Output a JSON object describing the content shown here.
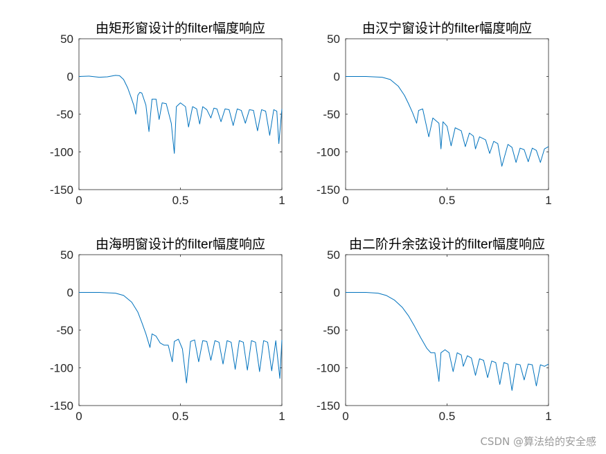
{
  "watermark": "CSDN @算法给的安全感",
  "colors": {
    "line": "#0072BD",
    "axis": "#262626",
    "background": "#ffffff"
  },
  "chart_data": [
    {
      "type": "line",
      "title": "由矩形窗设计的filter幅度响应",
      "xlabel": "",
      "ylabel": "",
      "xlim": [
        0,
        1
      ],
      "ylim": [
        -150,
        50
      ],
      "xticks": [
        "0",
        "0.5",
        "1"
      ],
      "yticks": [
        "50",
        "0",
        "-50",
        "-100",
        "-150"
      ],
      "grid": false,
      "series": [
        {
          "x": [
            0,
            0.05,
            0.1,
            0.14,
            0.18,
            0.2,
            0.22,
            0.24,
            0.26,
            0.27,
            0.28,
            0.29,
            0.3,
            0.31,
            0.33,
            0.345,
            0.36,
            0.38,
            0.395,
            0.41,
            0.43,
            0.455,
            0.47,
            0.48,
            0.5,
            0.525,
            0.54,
            0.56,
            0.58,
            0.595,
            0.61,
            0.63,
            0.65,
            0.665,
            0.68,
            0.7,
            0.72,
            0.74,
            0.76,
            0.78,
            0.8,
            0.82,
            0.84,
            0.86,
            0.88,
            0.9,
            0.92,
            0.94,
            0.96,
            0.975,
            0.985,
            1
          ],
          "values": [
            0,
            0.5,
            -1,
            -0.5,
            1.5,
            1,
            -4,
            -15,
            -30,
            -38,
            -50,
            -25,
            -21,
            -22,
            -38,
            -73,
            -30,
            -30,
            -57,
            -35,
            -36,
            -62,
            -102,
            -40,
            -35,
            -40,
            -67,
            -40,
            -43,
            -63,
            -40,
            -44,
            -55,
            -42,
            -43,
            -60,
            -43,
            -44,
            -65,
            -43,
            -45,
            -62,
            -44,
            -45,
            -72,
            -44,
            -46,
            -78,
            -44,
            -46,
            -89,
            -43
          ]
        }
      ]
    },
    {
      "type": "line",
      "title": "由汉宁窗设计的filter幅度响应",
      "xlabel": "",
      "ylabel": "",
      "xlim": [
        0,
        1
      ],
      "ylim": [
        -150,
        50
      ],
      "xticks": [
        "0",
        "0.5",
        "1"
      ],
      "yticks": [
        "50",
        "0",
        "-50",
        "-100",
        "-150"
      ],
      "grid": false,
      "series": [
        {
          "x": [
            0,
            0.1,
            0.18,
            0.22,
            0.26,
            0.29,
            0.31,
            0.33,
            0.35,
            0.36,
            0.38,
            0.41,
            0.43,
            0.46,
            0.47,
            0.48,
            0.5,
            0.52,
            0.54,
            0.57,
            0.59,
            0.61,
            0.63,
            0.64,
            0.66,
            0.69,
            0.71,
            0.73,
            0.75,
            0.77,
            0.8,
            0.82,
            0.84,
            0.86,
            0.88,
            0.9,
            0.92,
            0.94,
            0.96,
            0.98,
            1
          ],
          "values": [
            0,
            0,
            -1,
            -4,
            -13,
            -25,
            -36,
            -48,
            -62,
            -45,
            -43,
            -80,
            -55,
            -62,
            -96,
            -60,
            -66,
            -92,
            -68,
            -72,
            -93,
            -75,
            -79,
            -96,
            -80,
            -84,
            -102,
            -86,
            -89,
            -119,
            -90,
            -94,
            -114,
            -95,
            -97,
            -113,
            -95,
            -98,
            -114,
            -96,
            -93
          ]
        }
      ]
    },
    {
      "type": "line",
      "title": "由海明窗设计的filter幅度响应",
      "xlabel": "",
      "ylabel": "",
      "xlim": [
        0,
        1
      ],
      "ylim": [
        -150,
        50
      ],
      "xticks": [
        "0",
        "0.5",
        "1"
      ],
      "yticks": [
        "50",
        "0",
        "-50",
        "-100",
        "-150"
      ],
      "grid": false,
      "series": [
        {
          "x": [
            0,
            0.1,
            0.18,
            0.22,
            0.26,
            0.29,
            0.31,
            0.33,
            0.35,
            0.36,
            0.38,
            0.4,
            0.42,
            0.44,
            0.46,
            0.47,
            0.49,
            0.51,
            0.53,
            0.55,
            0.57,
            0.59,
            0.61,
            0.63,
            0.65,
            0.67,
            0.69,
            0.71,
            0.73,
            0.75,
            0.77,
            0.79,
            0.81,
            0.83,
            0.85,
            0.87,
            0.89,
            0.91,
            0.93,
            0.95,
            0.97,
            0.99,
            1
          ],
          "values": [
            0,
            0,
            -1,
            -4,
            -13,
            -26,
            -40,
            -55,
            -73,
            -55,
            -58,
            -67,
            -70,
            -70,
            -92,
            -65,
            -62,
            -75,
            -120,
            -65,
            -63,
            -92,
            -64,
            -65,
            -90,
            -64,
            -66,
            -95,
            -64,
            -66,
            -102,
            -64,
            -66,
            -103,
            -64,
            -66,
            -105,
            -64,
            -66,
            -104,
            -64,
            -114,
            -63
          ]
        }
      ]
    },
    {
      "type": "line",
      "title": "由二阶升余弦设计的filter幅度响应",
      "xlabel": "",
      "ylabel": "",
      "xlim": [
        0,
        1
      ],
      "ylim": [
        -150,
        50
      ],
      "xticks": [
        "0",
        "0.5",
        "1"
      ],
      "yticks": [
        "50",
        "0",
        "-50",
        "-100",
        "-150"
      ],
      "grid": false,
      "series": [
        {
          "x": [
            0,
            0.1,
            0.16,
            0.2,
            0.24,
            0.28,
            0.31,
            0.34,
            0.37,
            0.4,
            0.42,
            0.44,
            0.46,
            0.47,
            0.49,
            0.51,
            0.53,
            0.55,
            0.57,
            0.58,
            0.6,
            0.62,
            0.64,
            0.66,
            0.68,
            0.7,
            0.72,
            0.74,
            0.76,
            0.78,
            0.8,
            0.82,
            0.84,
            0.86,
            0.88,
            0.9,
            0.92,
            0.94,
            0.96,
            0.98,
            1
          ],
          "values": [
            0,
            0,
            -1,
            -4,
            -10,
            -20,
            -31,
            -45,
            -60,
            -74,
            -80,
            -80,
            -118,
            -80,
            -76,
            -80,
            -105,
            -80,
            -83,
            -98,
            -84,
            -87,
            -110,
            -88,
            -90,
            -113,
            -91,
            -93,
            -122,
            -93,
            -95,
            -130,
            -95,
            -96,
            -116,
            -95,
            -96,
            -124,
            -96,
            -98,
            -95
          ]
        }
      ]
    }
  ]
}
